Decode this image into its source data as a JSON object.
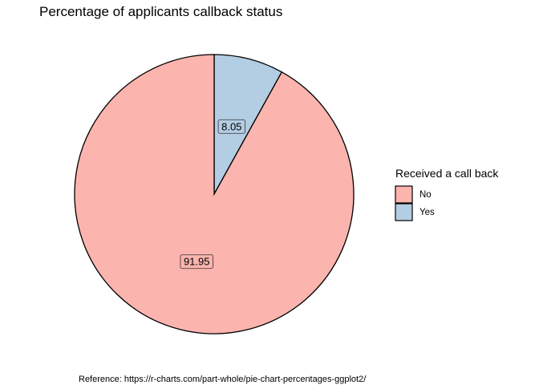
{
  "chart_data": {
    "type": "pie",
    "title": "Percentage of applicants callback status",
    "categories": [
      "No",
      "Yes"
    ],
    "values": [
      91.95,
      8.05
    ],
    "value_labels": [
      "91.95",
      "8.05"
    ],
    "colors": [
      "#FBB4AE",
      "#B3CDE3"
    ],
    "legend": {
      "title": "Received a call back",
      "position": "right"
    },
    "caption": "Reference: https://r-charts.com/part-whole/pie-chart-percentages-ggplot2/"
  }
}
